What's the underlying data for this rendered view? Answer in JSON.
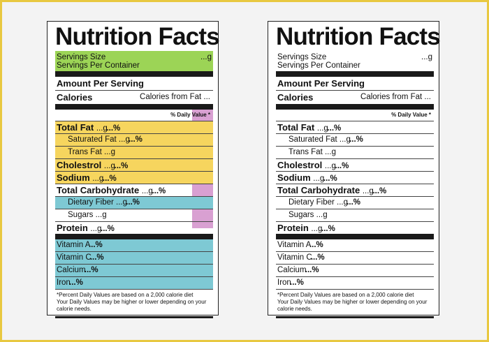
{
  "labels": [
    {
      "title": "Nutrition Facts",
      "servings_size": "Servings Size",
      "servings_size_value": "...g",
      "servings_per_container": "Servings Per Container",
      "amount_per_serving": "Amount Per Serving",
      "calories": "Calories",
      "calories_from_fat": "Calories from Fat ...",
      "daily_value_header": "% Daily Value *",
      "nutrients": [
        {
          "name": "Total Fat",
          "amount": "...g",
          "pct": "...%"
        },
        {
          "name": "Saturated Fat",
          "amount": "...g",
          "pct": "...%"
        },
        {
          "name": "Trans Fat",
          "amount": "...g",
          "pct": ""
        },
        {
          "name": "Cholestrol",
          "amount": "...g",
          "pct": "...%"
        },
        {
          "name": "Sodium",
          "amount": "...g",
          "pct": "...%"
        },
        {
          "name": "Total Carbohydrate",
          "amount": "...g",
          "pct": "...%"
        },
        {
          "name": "Dietary Fiber",
          "amount": "...g",
          "pct": "...%"
        },
        {
          "name": "Sugars",
          "amount": "...g",
          "pct": ""
        },
        {
          "name": "Protein",
          "amount": "...g",
          "pct": "...%"
        }
      ],
      "vitamins": [
        {
          "name": "Vitamin A",
          "pct": "...%"
        },
        {
          "name": "Vitamin C",
          "pct": "...%"
        },
        {
          "name": "Calcium",
          "pct": "...%"
        },
        {
          "name": "Iron",
          "pct": "...%"
        }
      ],
      "footnote_1": "*Percent Daily Values are based on a 2,000 calorie diet",
      "footnote_2": "Your Daily Values may be higher or lower depending on your",
      "footnote_3": "calorie needs."
    },
    {
      "title": "Nutrition Facts",
      "servings_size": "Servings Size",
      "servings_size_value": "...g",
      "servings_per_container": "Servings Per Container",
      "amount_per_serving": "Amount Per Serving",
      "calories": "Calories",
      "calories_from_fat": "Calories from Fat ...",
      "daily_value_header": "% Daily Value *",
      "nutrients": [
        {
          "name": "Total Fat",
          "amount": "...g",
          "pct": "...%"
        },
        {
          "name": "Saturated Fat",
          "amount": "...g",
          "pct": "...%"
        },
        {
          "name": "Trans Fat",
          "amount": "...g",
          "pct": ""
        },
        {
          "name": "Cholestrol",
          "amount": "...g",
          "pct": "...%"
        },
        {
          "name": "Sodium",
          "amount": "...g",
          "pct": "...%"
        },
        {
          "name": "Total Carbohydrate",
          "amount": "...g",
          "pct": "...%"
        },
        {
          "name": "Dietary Fiber",
          "amount": "...g",
          "pct": "...%"
        },
        {
          "name": "Sugars",
          "amount": "...g",
          "pct": ""
        },
        {
          "name": "Protein",
          "amount": "...g",
          "pct": "...%"
        }
      ],
      "vitamins": [
        {
          "name": "Vitamin A",
          "pct": "...%"
        },
        {
          "name": "Vitamin C",
          "pct": "...%"
        },
        {
          "name": "Calcium",
          "pct": "...%"
        },
        {
          "name": "Iron",
          "pct": "...%"
        }
      ],
      "footnote_1": "*Percent Daily Values are based on a 2,000 calorie diet",
      "footnote_2": "Your Daily Values may be higher or lower depending on your",
      "footnote_3": "calorie needs."
    }
  ],
  "colors": {
    "servings_highlight": "#9cd456",
    "nutrient_highlight": "#f6d55e",
    "vitamin_highlight": "#7ec9d4",
    "daily_value_highlight": "#d9a0d2",
    "frame": "#e8c840"
  }
}
